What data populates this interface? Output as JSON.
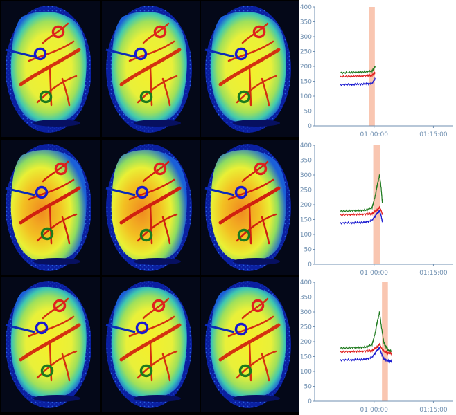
{
  "image_grid": {
    "rows": 3,
    "cols": 3,
    "roi_markers": [
      {
        "name": "red",
        "color": "#e02020"
      },
      {
        "name": "blue",
        "color": "#1a1ad0"
      },
      {
        "name": "green",
        "color": "#1e7a1e"
      }
    ]
  },
  "chart_data": [
    {
      "type": "line",
      "x_ticks": [
        "01:00:00",
        "01:15:00"
      ],
      "ylim": [
        0,
        400
      ],
      "y_ticks": [
        "0",
        "50",
        "100",
        "150",
        "200",
        "250",
        "300",
        "350",
        "400"
      ],
      "highlight_window": {
        "start_min": 58.7,
        "end_min": 60.2,
        "color": "#f8c0a8"
      },
      "series": [
        {
          "color": "#1e7a1e",
          "x": [
            51.5,
            54,
            56,
            58,
            59.5,
            60.3
          ],
          "y": [
            178,
            180,
            181,
            182,
            184,
            200
          ]
        },
        {
          "color": "#e02020",
          "x": [
            51.5,
            54,
            56,
            58,
            59.5,
            60.3
          ],
          "y": [
            165,
            167,
            168,
            168,
            170,
            178
          ]
        },
        {
          "color": "#1a1ad0",
          "x": [
            51.5,
            54,
            56,
            58,
            59.5,
            60.3
          ],
          "y": [
            138,
            139,
            140,
            141,
            143,
            158
          ]
        }
      ]
    },
    {
      "type": "line",
      "x_ticks": [
        "01:00:00",
        "01:15:00"
      ],
      "ylim": [
        0,
        400
      ],
      "y_ticks": [
        "0",
        "50",
        "100",
        "150",
        "200",
        "250",
        "300",
        "350",
        "400"
      ],
      "highlight_window": {
        "start_min": 59.8,
        "end_min": 61.5,
        "color": "#f8c0a8"
      },
      "series": [
        {
          "color": "#1e7a1e",
          "x": [
            51.5,
            54,
            56,
            58,
            59.5,
            60.3,
            60.8,
            61.4,
            61.8,
            62.1
          ],
          "y": [
            178,
            180,
            181,
            182,
            190,
            230,
            265,
            300,
            255,
            205
          ]
        },
        {
          "color": "#e02020",
          "x": [
            51.5,
            54,
            56,
            58,
            59.5,
            60.3,
            60.8,
            61.4,
            61.8,
            62.1
          ],
          "y": [
            165,
            167,
            168,
            168,
            170,
            178,
            182,
            192,
            180,
            168
          ]
        },
        {
          "color": "#1a1ad0",
          "x": [
            51.5,
            54,
            56,
            58,
            59.5,
            60.3,
            60.8,
            61.4,
            61.8,
            62.1
          ],
          "y": [
            138,
            139,
            140,
            141,
            148,
            162,
            172,
            180,
            162,
            142
          ]
        }
      ]
    },
    {
      "type": "line",
      "x_ticks": [
        "01:00:00",
        "01:15:00"
      ],
      "ylim": [
        0,
        400
      ],
      "y_ticks": [
        "0",
        "50",
        "100",
        "150",
        "200",
        "250",
        "300",
        "350",
        "400"
      ],
      "highlight_window": {
        "start_min": 62.0,
        "end_min": 63.5,
        "color": "#f8c0a8"
      },
      "series": [
        {
          "color": "#1e7a1e",
          "x": [
            51.5,
            54,
            56,
            58,
            59.5,
            60.3,
            60.8,
            61.4,
            61.8,
            62.5,
            63.5,
            64.5
          ],
          "y": [
            178,
            180,
            181,
            182,
            190,
            230,
            265,
            300,
            255,
            195,
            172,
            168
          ]
        },
        {
          "color": "#e02020",
          "x": [
            51.5,
            54,
            56,
            58,
            59.5,
            60.3,
            60.8,
            61.4,
            61.8,
            62.5,
            63.5,
            64.5
          ],
          "y": [
            165,
            167,
            168,
            168,
            170,
            178,
            182,
            192,
            180,
            168,
            162,
            160
          ]
        },
        {
          "color": "#1a1ad0",
          "x": [
            51.5,
            54,
            56,
            58,
            59.5,
            60.3,
            60.8,
            61.4,
            61.8,
            62.5,
            63.5,
            64.5
          ],
          "y": [
            138,
            139,
            140,
            141,
            148,
            162,
            172,
            180,
            162,
            142,
            136,
            134
          ]
        }
      ]
    }
  ]
}
